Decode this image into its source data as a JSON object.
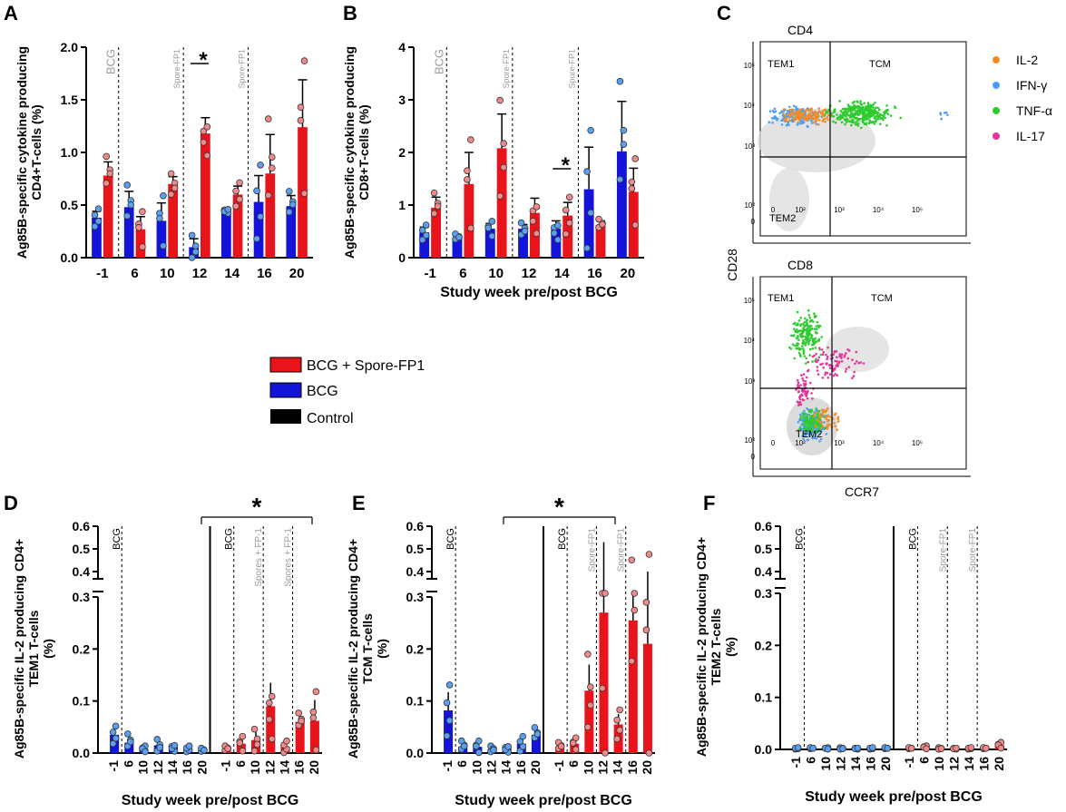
{
  "colors": {
    "red": "#e8141b",
    "blue": "#1414d8",
    "black": "#000000",
    "red_dot": "#f08a8a",
    "blue_dot": "#5aa0f0",
    "gray_text": "#9a9a9a",
    "il2": "#f28c28",
    "ifng": "#4a9ff5",
    "tnfa": "#2ecc2e",
    "il17": "#e6359b"
  },
  "panel_letters": {
    "A": "A",
    "B": "B",
    "C": "C",
    "D": "D",
    "E": "E",
    "F": "F"
  },
  "legend": {
    "items": [
      {
        "label": "BCG + Spore-FP1",
        "color": "red"
      },
      {
        "label": "BCG",
        "color": "blue"
      },
      {
        "label": "Control",
        "color": "black"
      }
    ]
  },
  "flow": {
    "cd4_title": "CD4",
    "cd8_title": "CD8",
    "gate_labels": {
      "tem1": "TEM1",
      "tcm": "TCM",
      "tem2": "TEM2"
    },
    "y_axis_label": "CD28",
    "x_axis_label": "CCR7",
    "y_ticks": [
      "10⁵",
      "10⁴",
      "10³",
      "10²",
      "0"
    ],
    "x_ticks": [
      "0",
      "10²",
      "10³",
      "10⁴",
      "10⁵"
    ],
    "legend": [
      {
        "label": "IL-2",
        "color": "il2"
      },
      {
        "label": "IFN-γ",
        "color": "ifng"
      },
      {
        "label": "TNF-α",
        "color": "tnfa"
      },
      {
        "label": "IL-17",
        "color": "il17"
      }
    ]
  },
  "chart_data": [
    {
      "panel": "A",
      "type": "bar",
      "ylabel": "Ag85B-specific cytokine producing CD4+T-cells (%)",
      "xlabel": "",
      "categories": [
        "-1",
        "6",
        "10",
        "12",
        "14",
        "16",
        "20"
      ],
      "ylim": [
        0,
        2.0
      ],
      "yticks": [
        "0.0",
        "0.5",
        "1.0",
        "1.5",
        "2.0"
      ],
      "series": [
        {
          "name": "BCG",
          "values": [
            0.38,
            0.48,
            0.35,
            0.1,
            0.45,
            0.53,
            0.49
          ],
          "errors": [
            0.06,
            0.15,
            0.17,
            0.08,
            0.02,
            0.25,
            0.1
          ]
        },
        {
          "name": "BCG + Spore-FP1",
          "values": [
            0.78,
            0.27,
            0.7,
            1.18,
            0.6,
            0.8,
            1.24
          ],
          "errors": [
            0.13,
            0.12,
            0.07,
            0.15,
            0.08,
            0.37,
            0.45
          ]
        }
      ],
      "annotations": [
        "BCG",
        "Spore-FP1",
        "Spore-FP1",
        "*"
      ]
    },
    {
      "panel": "B",
      "type": "bar",
      "ylabel": "Ag85B-specific cytokine producing CD8+T-cells (%)",
      "xlabel": "Study week pre/post BCG",
      "categories": [
        "-1",
        "6",
        "10",
        "12",
        "14",
        "16",
        "20"
      ],
      "ylim": [
        0,
        4
      ],
      "yticks": [
        "0",
        "1",
        "2",
        "3",
        "4"
      ],
      "series": [
        {
          "name": "BCG",
          "values": [
            0.48,
            0.38,
            0.55,
            0.55,
            0.55,
            1.3,
            2.02
          ],
          "errors": [
            0.1,
            0.05,
            0.1,
            0.08,
            0.15,
            0.8,
            0.95
          ]
        },
        {
          "name": "BCG + Spore-FP1",
          "values": [
            0.95,
            1.4,
            2.08,
            0.85,
            0.8,
            0.62,
            1.25
          ],
          "errors": [
            0.2,
            0.6,
            0.65,
            0.28,
            0.25,
            0.08,
            0.45
          ]
        }
      ],
      "annotations": [
        "BCG",
        "Spore-FP1",
        "Spore-FP1",
        "*"
      ]
    },
    {
      "panel": "D",
      "type": "bar",
      "ylabel": "Ag85B-specific IL-2 producing CD4+ TEM1 T-cells (%)",
      "xlabel": "Study week pre/post BCG",
      "categories": [
        "-1",
        "6",
        "10",
        "12",
        "14",
        "16",
        "20"
      ],
      "yticks": [
        "0.0",
        "0.1",
        "0.2",
        "0.3",
        "0.4",
        "0.5",
        "0.6"
      ],
      "series": [
        {
          "name": "BCG",
          "values": [
            0.035,
            0.02,
            0.008,
            0.015,
            0.012,
            0.008,
            0.005
          ],
          "errors": [
            0.012,
            0.012,
            0.004,
            0.008,
            0.006,
            0.004,
            0.003
          ]
        },
        {
          "name": "BCG + Spore-FP1",
          "values": [
            0.008,
            0.018,
            0.025,
            0.09,
            0.012,
            0.06,
            0.062
          ],
          "errors": [
            0.004,
            0.01,
            0.015,
            0.045,
            0.008,
            0.012,
            0.04
          ]
        }
      ],
      "annotations": [
        "BCG",
        "BCG",
        "Spores + FP-1",
        "Spores + FP-1",
        "*"
      ]
    },
    {
      "panel": "E",
      "type": "bar",
      "ylabel": "Ag85B-specific IL-2 producing CD4+ TCM T-cells (%)",
      "xlabel": "Study week pre/post BCG",
      "categories": [
        "-1",
        "6",
        "10",
        "12",
        "14",
        "16",
        "20"
      ],
      "yticks": [
        "0.0",
        "0.1",
        "0.2",
        "0.3",
        "0.4",
        "0.5",
        "0.6"
      ],
      "series": [
        {
          "name": "BCG",
          "values": [
            0.082,
            0.012,
            0.012,
            0.008,
            0.01,
            0.018,
            0.035
          ],
          "errors": [
            0.035,
            0.008,
            0.008,
            0.004,
            0.006,
            0.01,
            0.01
          ]
        },
        {
          "name": "BCG + Spore-FP1",
          "values": [
            0.012,
            0.018,
            0.12,
            0.27,
            0.055,
            0.255,
            0.21
          ],
          "errors": [
            0.006,
            0.008,
            0.05,
            0.26,
            0.02,
            0.14,
            0.19
          ]
        }
      ],
      "annotations": [
        "BCG",
        "BCG",
        "Spore-FP1",
        "Spore-FP1",
        "*"
      ]
    },
    {
      "panel": "F",
      "type": "bar",
      "ylabel": "Ag85B-specific IL-2 producing CD4+ TEM2 T-cells (%)",
      "xlabel": "Study week pre/post BCG",
      "categories": [
        "-1",
        "6",
        "10",
        "12",
        "14",
        "16",
        "20"
      ],
      "yticks": [
        "0.0",
        "0.1",
        "0.2",
        "0.3",
        "0.4",
        "0.5",
        "0.6"
      ],
      "series": [
        {
          "name": "BCG",
          "values": [
            0.002,
            0.002,
            0.002,
            0.002,
            0.002,
            0.002,
            0.002
          ],
          "errors": [
            0.001,
            0.001,
            0.001,
            0.001,
            0.001,
            0.001,
            0.001
          ]
        },
        {
          "name": "BCG + Spore-FP1",
          "values": [
            0.002,
            0.004,
            0.002,
            0.002,
            0.002,
            0.002,
            0.008
          ],
          "errors": [
            0.001,
            0.002,
            0.001,
            0.001,
            0.001,
            0.001,
            0.004
          ]
        }
      ],
      "annotations": [
        "BCG",
        "BCG",
        "Spore-FP1",
        "Spore-FP1"
      ]
    }
  ]
}
